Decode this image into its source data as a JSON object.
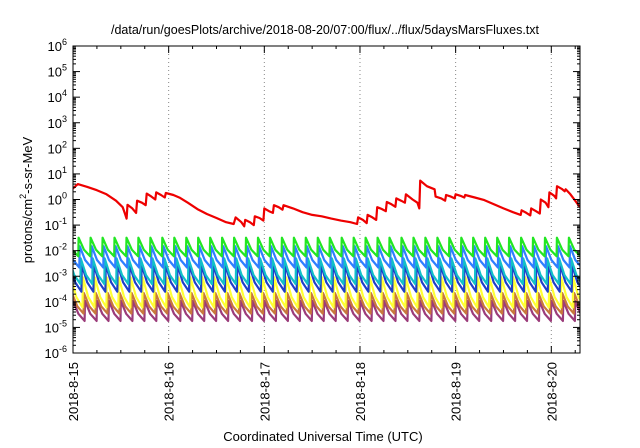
{
  "chart_data": {
    "type": "line",
    "title": "/data/run/goesPlots/archive/2018-08-20/07:00/flux/../flux/5daysMarsFluxes.txt",
    "xlabel": "Coordinated Universal Time (UTC)",
    "ylabel": "protons/cm²-s-sr-MeV",
    "yscale": "log",
    "ylim": [
      1e-06,
      1000000.0
    ],
    "xlim": [
      0,
      5.3
    ],
    "x_unit": "days since 2018-8-15 00:00 UTC",
    "x_ticks": [
      {
        "x": 0,
        "label": "2018-8-15"
      },
      {
        "x": 1,
        "label": "2018-8-16"
      },
      {
        "x": 2,
        "label": "2018-8-17"
      },
      {
        "x": 3,
        "label": "2018-8-18"
      },
      {
        "x": 4,
        "label": "2018-8-19"
      },
      {
        "x": 5,
        "label": "2018-8-20"
      }
    ],
    "y_tick_exponents": [
      -6,
      -5,
      -4,
      -3,
      -2,
      -1,
      0,
      1,
      2,
      3,
      4,
      5,
      6
    ],
    "grid": "vertical dotted",
    "legend": "none",
    "sawtooth": {
      "period_days": 0.125,
      "description": "Each lower series is a repeating sawtooth: jumps up to max then decays to min every period"
    },
    "series": [
      {
        "name": "",
        "color": "#9b3b7a",
        "min": 1.8e-05,
        "max": 0.00011
      },
      {
        "name": "",
        "color": "#c8783c",
        "min": 3.5e-05,
        "max": 0.00022
      },
      {
        "name": "",
        "color": "#ffff33",
        "min": 6e-05,
        "max": 0.0009
      },
      {
        "name": "",
        "color": "#1f3fc8",
        "min": 0.00025,
        "max": 0.0028
      },
      {
        "name": "",
        "color": "#12c0c8",
        "min": 0.0005,
        "max": 0.005
      },
      {
        "name": "",
        "color": "#2f7fff",
        "min": 0.0022,
        "max": 0.015
      },
      {
        "name": "",
        "color": "#22e622",
        "min": 0.006,
        "max": 0.032
      }
    ],
    "red_series": {
      "name": "",
      "color": "#ee0000",
      "points": [
        [
          0.0,
          2.7
        ],
        [
          0.05,
          4.0
        ],
        [
          0.15,
          3.1
        ],
        [
          0.25,
          2.3
        ],
        [
          0.35,
          1.6
        ],
        [
          0.45,
          0.9
        ],
        [
          0.52,
          0.5
        ],
        [
          0.54,
          0.3
        ],
        [
          0.56,
          0.18
        ],
        [
          0.57,
          0.62
        ],
        [
          0.62,
          0.45
        ],
        [
          0.66,
          0.3
        ],
        [
          0.67,
          0.9
        ],
        [
          0.72,
          0.75
        ],
        [
          0.76,
          0.6
        ],
        [
          0.77,
          1.7
        ],
        [
          0.82,
          1.3
        ],
        [
          0.86,
          1.0
        ],
        [
          0.87,
          1.9
        ],
        [
          0.92,
          1.5
        ],
        [
          0.96,
          1.2
        ],
        [
          0.97,
          1.8
        ],
        [
          1.05,
          1.5
        ],
        [
          1.12,
          1.15
        ],
        [
          1.2,
          0.75
        ],
        [
          1.3,
          0.42
        ],
        [
          1.4,
          0.27
        ],
        [
          1.5,
          0.19
        ],
        [
          1.6,
          0.13
        ],
        [
          1.68,
          0.11
        ],
        [
          1.7,
          0.2
        ],
        [
          1.76,
          0.13
        ],
        [
          1.79,
          0.09
        ],
        [
          1.8,
          0.16
        ],
        [
          1.85,
          0.13
        ],
        [
          1.89,
          0.1
        ],
        [
          1.9,
          0.22
        ],
        [
          1.95,
          0.19
        ],
        [
          1.99,
          0.15
        ],
        [
          2.0,
          0.45
        ],
        [
          2.05,
          0.35
        ],
        [
          2.09,
          0.3
        ],
        [
          2.1,
          0.6
        ],
        [
          2.15,
          0.5
        ],
        [
          2.19,
          0.4
        ],
        [
          2.2,
          0.6
        ],
        [
          2.3,
          0.45
        ],
        [
          2.4,
          0.32
        ],
        [
          2.5,
          0.25
        ],
        [
          2.6,
          0.22
        ],
        [
          2.7,
          0.18
        ],
        [
          2.8,
          0.15
        ],
        [
          2.9,
          0.13
        ],
        [
          2.97,
          0.11
        ],
        [
          2.98,
          0.2
        ],
        [
          3.03,
          0.16
        ],
        [
          3.07,
          0.12
        ],
        [
          3.08,
          0.25
        ],
        [
          3.13,
          0.2
        ],
        [
          3.17,
          0.16
        ],
        [
          3.18,
          0.5
        ],
        [
          3.23,
          0.42
        ],
        [
          3.27,
          0.35
        ],
        [
          3.28,
          0.8
        ],
        [
          3.33,
          0.65
        ],
        [
          3.37,
          0.52
        ],
        [
          3.38,
          1.1
        ],
        [
          3.43,
          0.9
        ],
        [
          3.47,
          0.75
        ],
        [
          3.48,
          1.6
        ],
        [
          3.55,
          1.0
        ],
        [
          3.6,
          0.75
        ],
        [
          3.62,
          0.45
        ],
        [
          3.63,
          5.5
        ],
        [
          3.7,
          3.3
        ],
        [
          3.78,
          2.5
        ],
        [
          3.79,
          1.3
        ],
        [
          3.85,
          1.1
        ],
        [
          3.89,
          0.9
        ],
        [
          3.9,
          1.5
        ],
        [
          3.95,
          1.3
        ],
        [
          3.99,
          1.1
        ],
        [
          4.0,
          1.6
        ],
        [
          4.05,
          1.4
        ],
        [
          4.09,
          1.2
        ],
        [
          4.1,
          1.5
        ],
        [
          4.2,
          1.2
        ],
        [
          4.3,
          0.95
        ],
        [
          4.4,
          0.65
        ],
        [
          4.5,
          0.45
        ],
        [
          4.6,
          0.32
        ],
        [
          4.68,
          0.25
        ],
        [
          4.69,
          0.38
        ],
        [
          4.74,
          0.3
        ],
        [
          4.78,
          0.24
        ],
        [
          4.79,
          0.45
        ],
        [
          4.84,
          0.35
        ],
        [
          4.88,
          0.28
        ],
        [
          4.89,
          1.0
        ],
        [
          4.94,
          0.75
        ],
        [
          4.97,
          0.5
        ],
        [
          4.98,
          1.9
        ],
        [
          5.03,
          1.4
        ],
        [
          5.05,
          1.1
        ],
        [
          5.06,
          3.3
        ],
        [
          5.11,
          2.6
        ],
        [
          5.14,
          2.1
        ],
        [
          5.15,
          2.5
        ],
        [
          5.2,
          1.6
        ],
        [
          5.25,
          0.9
        ],
        [
          5.3,
          0.5
        ]
      ]
    }
  }
}
